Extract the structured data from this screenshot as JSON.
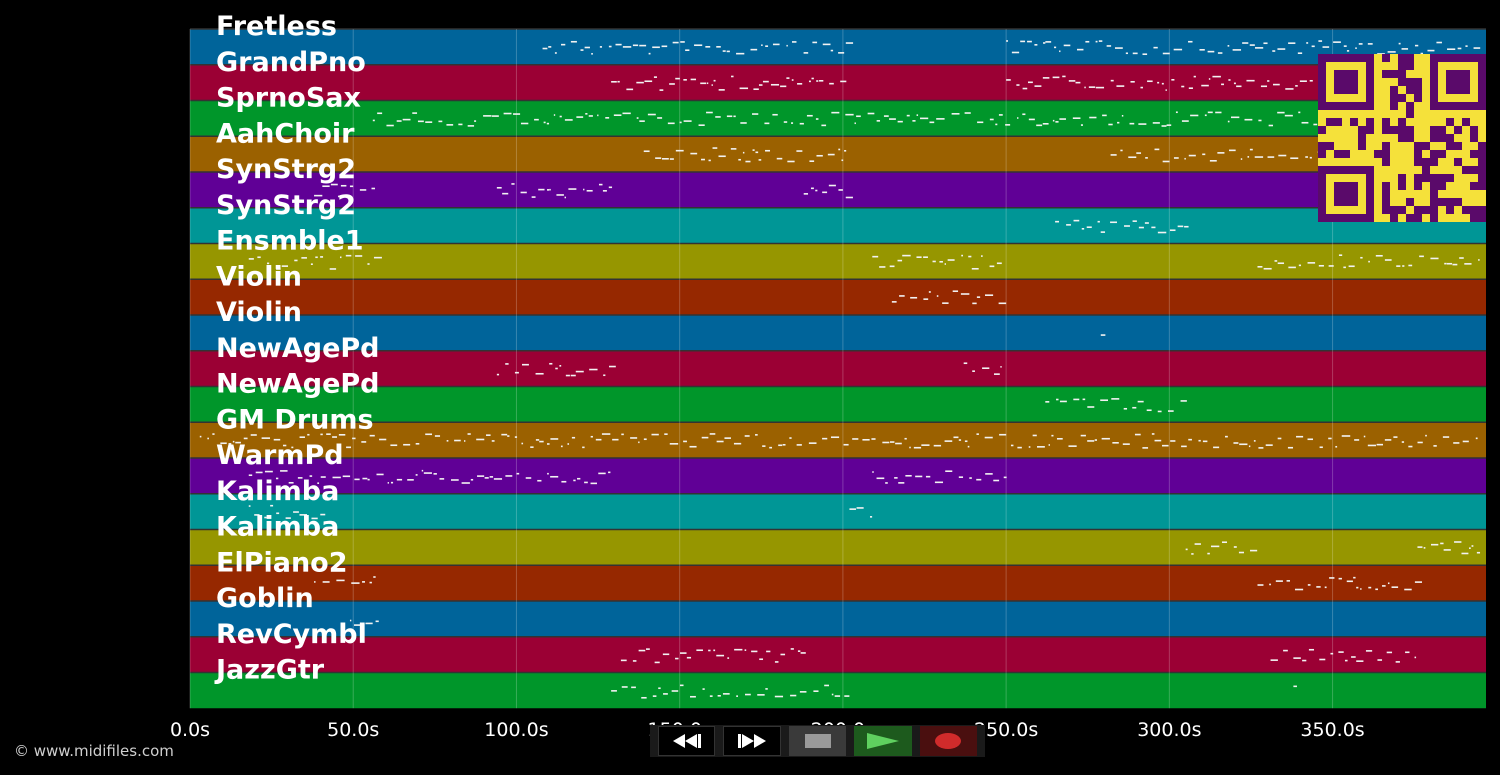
{
  "tracks": [
    {
      "name": "Fretless",
      "color": "#00649a"
    },
    {
      "name": "GrandPno",
      "color": "#9b0034"
    },
    {
      "name": "SprnoSax",
      "color": "#00962a"
    },
    {
      "name": "AahChoir",
      "color": "#9b6100"
    },
    {
      "name": "SynStrg2",
      "color": "#600096"
    },
    {
      "name": "SynStrg2",
      "color": "#009696"
    },
    {
      "name": "Ensmble1",
      "color": "#969600"
    },
    {
      "name": "Violin",
      "color": "#962800"
    },
    {
      "name": "Violin",
      "color": "#00649a"
    },
    {
      "name": "NewAgePd",
      "color": "#9b0034"
    },
    {
      "name": "NewAgePd",
      "color": "#00962a"
    },
    {
      "name": "GM Drums",
      "color": "#9b6100"
    },
    {
      "name": "WarmPd",
      "color": "#600096"
    },
    {
      "name": "Kalimba",
      "color": "#009696"
    },
    {
      "name": "Kalimba",
      "color": "#969600"
    },
    {
      "name": "ElPiano2",
      "color": "#962800"
    },
    {
      "name": "Goblin",
      "color": "#00649a"
    },
    {
      "name": "RevCymbl",
      "color": "#9b0034"
    },
    {
      "name": "JazzGtr",
      "color": "#00962a"
    }
  ],
  "time_axis": {
    "ticks": [
      "0.0s",
      "50.0s",
      "100.0s",
      "150.0s",
      "200.0s",
      "250.0s",
      "300.0s",
      "350.0s"
    ],
    "tick_seconds": [
      0,
      50,
      100,
      150,
      200,
      250,
      300,
      350
    ],
    "max_seconds": 397
  },
  "copyright": "© www.midifiles.com",
  "controls": [
    {
      "name": "rewind-button",
      "icon": "rewind-icon"
    },
    {
      "name": "fast-forward-button",
      "icon": "fast-forward-icon"
    },
    {
      "name": "stop-button",
      "icon": "stop-icon"
    },
    {
      "name": "play-button",
      "icon": "play-icon"
    },
    {
      "name": "record-button",
      "icon": "record-icon"
    }
  ],
  "qr_code": {
    "icon": "qr-code-icon",
    "fg": "#5a0a6a",
    "bg": "#f5e13a"
  }
}
